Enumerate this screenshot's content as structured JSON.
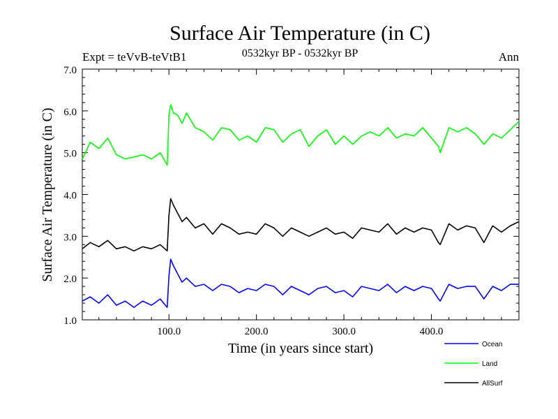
{
  "chart_data": {
    "type": "line",
    "title": "Surface Air Temperature (in C)",
    "subtitle": "0532kyr BP - 0532kyr BP",
    "experiment_label": "Expt = teVvB-teVtB1",
    "season_label": "Ann",
    "xlabel": "Time (in years since start)",
    "ylabel": "Surface Air Temperature (in C)",
    "xlim": [
      1,
      500
    ],
    "ylim": [
      1.0,
      7.0
    ],
    "x_ticks": [
      100,
      200,
      300,
      400
    ],
    "x_tick_labels": [
      "100.0",
      "200.0",
      "300.0",
      "400.0"
    ],
    "y_ticks": [
      1,
      2,
      3,
      4,
      5,
      6,
      7
    ],
    "y_tick_labels": [
      "1.0",
      "2.0",
      "3.0",
      "4.0",
      "5.0",
      "6.0",
      "7.0"
    ],
    "x": [
      1,
      10,
      20,
      30,
      40,
      50,
      60,
      70,
      80,
      90,
      98,
      100,
      102,
      105,
      110,
      115,
      120,
      130,
      140,
      150,
      160,
      170,
      180,
      190,
      200,
      210,
      220,
      230,
      240,
      250,
      260,
      270,
      280,
      290,
      300,
      310,
      320,
      330,
      340,
      350,
      360,
      370,
      380,
      390,
      400,
      408,
      410,
      420,
      430,
      440,
      450,
      460,
      470,
      480,
      490,
      500
    ],
    "series": [
      {
        "name": "Land",
        "color": "#00ff00",
        "values": [
          4.85,
          5.25,
          5.1,
          5.35,
          4.95,
          4.85,
          4.9,
          4.95,
          4.85,
          5.0,
          4.7,
          5.9,
          6.15,
          5.95,
          5.9,
          5.7,
          5.95,
          5.6,
          5.5,
          5.3,
          5.6,
          5.55,
          5.3,
          5.4,
          5.25,
          5.6,
          5.55,
          5.25,
          5.45,
          5.55,
          5.15,
          5.4,
          5.55,
          5.2,
          5.4,
          5.2,
          5.4,
          5.5,
          5.4,
          5.6,
          5.35,
          5.45,
          5.4,
          5.6,
          5.35,
          5.15,
          5.0,
          5.6,
          5.5,
          5.6,
          5.45,
          5.2,
          5.45,
          5.35,
          5.55,
          5.75
        ]
      },
      {
        "name": "AllSurf",
        "color": "#000000",
        "values": [
          2.7,
          2.85,
          2.75,
          2.9,
          2.7,
          2.75,
          2.65,
          2.75,
          2.7,
          2.8,
          2.65,
          3.5,
          3.9,
          3.75,
          3.55,
          3.35,
          3.45,
          3.2,
          3.3,
          3.05,
          3.3,
          3.2,
          3.05,
          3.1,
          3.05,
          3.3,
          3.2,
          3.0,
          3.2,
          3.1,
          3.0,
          3.1,
          3.2,
          3.05,
          3.1,
          2.95,
          3.2,
          3.15,
          3.1,
          3.3,
          3.05,
          3.2,
          3.1,
          3.2,
          3.15,
          2.85,
          2.8,
          3.3,
          3.15,
          3.25,
          3.2,
          2.85,
          3.25,
          3.1,
          3.25,
          3.35
        ]
      },
      {
        "name": "Ocean",
        "color": "#0000ff",
        "values": [
          1.45,
          1.55,
          1.4,
          1.6,
          1.35,
          1.45,
          1.3,
          1.45,
          1.35,
          1.5,
          1.3,
          2.05,
          2.45,
          2.3,
          2.1,
          1.9,
          2.0,
          1.8,
          1.85,
          1.7,
          1.85,
          1.8,
          1.65,
          1.75,
          1.7,
          1.85,
          1.8,
          1.6,
          1.8,
          1.7,
          1.6,
          1.75,
          1.8,
          1.65,
          1.7,
          1.55,
          1.8,
          1.75,
          1.7,
          1.85,
          1.65,
          1.8,
          1.7,
          1.8,
          1.75,
          1.5,
          1.45,
          1.85,
          1.75,
          1.8,
          1.8,
          1.5,
          1.8,
          1.7,
          1.85,
          1.85
        ]
      }
    ],
    "legend": {
      "placement": "bottom-right",
      "entries": [
        {
          "label": "Ocean",
          "color": "#0000ff"
        },
        {
          "label": "Land",
          "color": "#00ff00"
        },
        {
          "label": "AllSurf",
          "color": "#000000"
        }
      ]
    }
  }
}
